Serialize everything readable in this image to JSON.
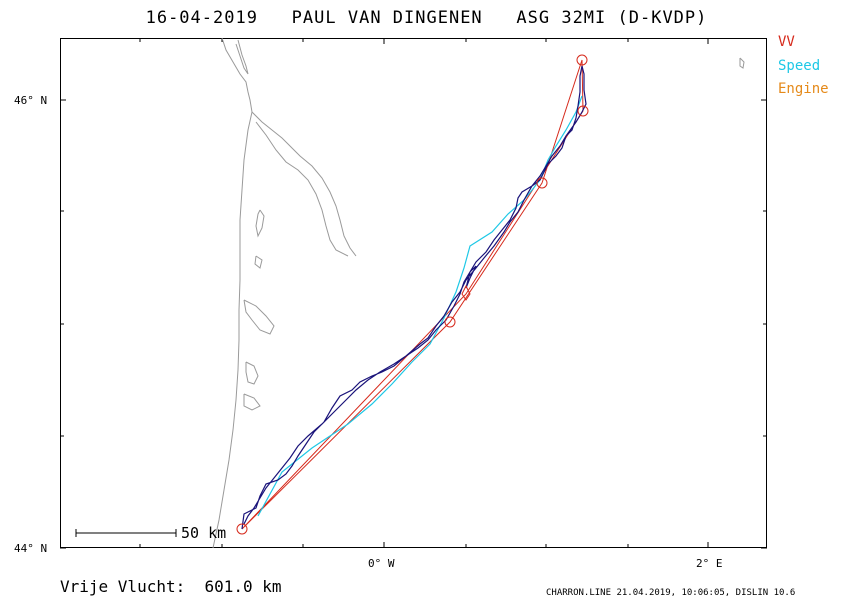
{
  "header": {
    "date": "16-04-2019",
    "pilot": "PAUL VAN DINGENEN",
    "aircraft": "ASG 32MI (D-KVDP)"
  },
  "legend": [
    {
      "label": "VV",
      "color": "#d62a1c"
    },
    {
      "label": "Speed",
      "color": "#1ec8e6"
    },
    {
      "label": "Engine",
      "color": "#e58a1a"
    }
  ],
  "axes": {
    "lat_labels": [
      "46° N",
      "44° N"
    ],
    "lon_labels": [
      "0° W",
      "2° E"
    ]
  },
  "scale_bar": {
    "label": "50 km"
  },
  "footer": {
    "distance": "Vrije Vlucht:  601.0 km",
    "credit": "CHARRON.LINE 21.04.2019, 10:06:05, DISLIN 10.6"
  },
  "colors": {
    "track": "#1a137a",
    "speed": "#1ec8e6",
    "vv": "#d62a1c",
    "coast": "#9a9a9a"
  }
}
